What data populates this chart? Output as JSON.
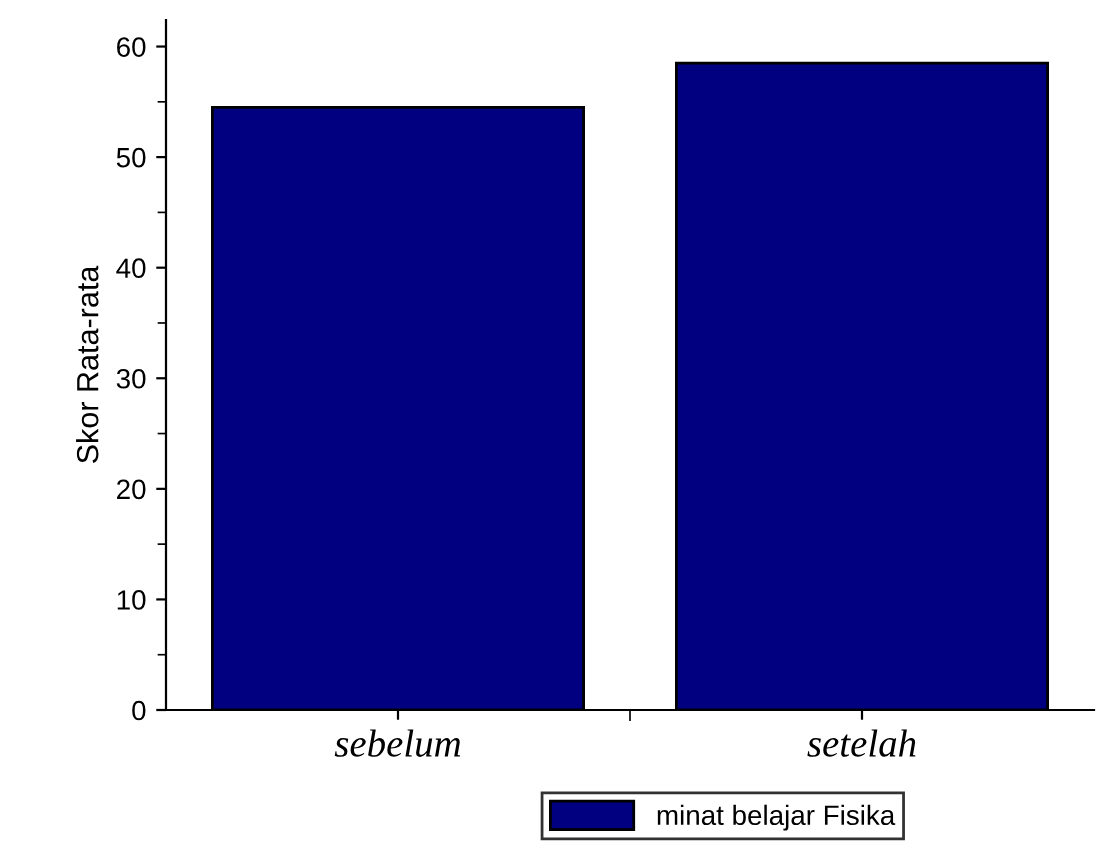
{
  "chart_data": {
    "type": "bar",
    "ylabel": "Skor Rata-rata",
    "categories": [
      "sebelum",
      "setelah"
    ],
    "series": [
      {
        "name": "minat belajar Fisika",
        "color": "#000080",
        "values": [
          54.5,
          58.5
        ]
      }
    ],
    "ylim": [
      0,
      62.4
    ],
    "yticks": [
      0,
      10,
      20,
      30,
      40,
      50,
      60
    ],
    "grid": false,
    "legend": "bottom"
  }
}
